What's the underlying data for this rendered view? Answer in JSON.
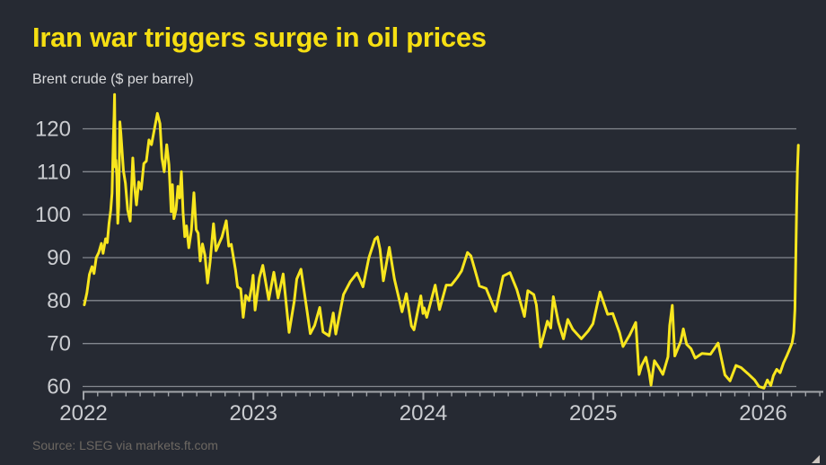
{
  "colors": {
    "background": "#262a33",
    "accent_yellow": "#f6df12",
    "line_yellow": "#f8e61e",
    "grid": "#84888f",
    "axis": "#a2a5aa",
    "tick_label": "#caccd0",
    "subtitle_text": "#d9dadc",
    "source_text": "#6d6862"
  },
  "chart_data": {
    "type": "line",
    "title": "Iran war triggers surge in oil prices",
    "subtitle": "Brent crude ($ per barrel)",
    "source": "Source: LSEG via markets.ft.com",
    "xlabel": "",
    "ylabel": "$ per barrel",
    "x_unit": "decimal year (daily price series)",
    "xlim": [
      2022.0,
      2026.36
    ],
    "ylim": [
      57,
      130
    ],
    "yticks": [
      120,
      110,
      100,
      90,
      80,
      70,
      60
    ],
    "xticks": [
      2022,
      2023,
      2024,
      2025,
      2026
    ],
    "grid": "horizontal gridlines on, monthly minor ticks on x axis",
    "legend": "none",
    "series": [
      {
        "name": "Brent crude",
        "color": "#f8e61e",
        "points": [
          [
            2022.005,
            79.0
          ],
          [
            2022.02,
            81.8
          ],
          [
            2022.035,
            86.1
          ],
          [
            2022.05,
            87.9
          ],
          [
            2022.062,
            86.3
          ],
          [
            2022.075,
            90.0
          ],
          [
            2022.09,
            91.2
          ],
          [
            2022.105,
            93.3
          ],
          [
            2022.115,
            91.0
          ],
          [
            2022.13,
            94.4
          ],
          [
            2022.14,
            93.5
          ],
          [
            2022.15,
            97.9
          ],
          [
            2022.16,
            101.0
          ],
          [
            2022.168,
            105.0
          ],
          [
            2022.176,
            118.1
          ],
          [
            2022.18,
            123.2
          ],
          [
            2022.183,
            127.98
          ],
          [
            2022.187,
            111.1
          ],
          [
            2022.191,
            112.7
          ],
          [
            2022.196,
            109.0
          ],
          [
            2022.202,
            98.0
          ],
          [
            2022.207,
            101.9
          ],
          [
            2022.214,
            121.6
          ],
          [
            2022.22,
            119.0
          ],
          [
            2022.235,
            110.2
          ],
          [
            2022.247,
            107.3
          ],
          [
            2022.26,
            101.1
          ],
          [
            2022.275,
            98.5
          ],
          [
            2022.29,
            113.2
          ],
          [
            2022.3,
            106.7
          ],
          [
            2022.312,
            102.3
          ],
          [
            2022.325,
            107.6
          ],
          [
            2022.34,
            105.9
          ],
          [
            2022.355,
            111.9
          ],
          [
            2022.37,
            112.5
          ],
          [
            2022.385,
            117.4
          ],
          [
            2022.4,
            116.3
          ],
          [
            2022.42,
            120.5
          ],
          [
            2022.435,
            123.6
          ],
          [
            2022.45,
            121.2
          ],
          [
            2022.462,
            113.1
          ],
          [
            2022.475,
            110.0
          ],
          [
            2022.49,
            116.3
          ],
          [
            2022.503,
            111.6
          ],
          [
            2022.51,
            106.0
          ],
          [
            2022.516,
            100.7
          ],
          [
            2022.523,
            107.0
          ],
          [
            2022.532,
            99.1
          ],
          [
            2022.545,
            101.2
          ],
          [
            2022.556,
            106.6
          ],
          [
            2022.566,
            103.9
          ],
          [
            2022.576,
            110.0
          ],
          [
            2022.586,
            100.5
          ],
          [
            2022.596,
            94.9
          ],
          [
            2022.606,
            97.4
          ],
          [
            2022.62,
            92.3
          ],
          [
            2022.635,
            96.4
          ],
          [
            2022.65,
            105.1
          ],
          [
            2022.663,
            96.5
          ],
          [
            2022.675,
            95.7
          ],
          [
            2022.687,
            89.2
          ],
          [
            2022.7,
            93.2
          ],
          [
            2022.715,
            90.5
          ],
          [
            2022.73,
            84.1
          ],
          [
            2022.745,
            89.0
          ],
          [
            2022.765,
            97.9
          ],
          [
            2022.78,
            91.6
          ],
          [
            2022.8,
            93.5
          ],
          [
            2022.815,
            94.8
          ],
          [
            2022.84,
            98.6
          ],
          [
            2022.855,
            92.7
          ],
          [
            2022.87,
            93.1
          ],
          [
            2022.895,
            87.0
          ],
          [
            2022.907,
            83.2
          ],
          [
            2022.925,
            82.7
          ],
          [
            2022.94,
            76.1
          ],
          [
            2022.955,
            81.2
          ],
          [
            2022.975,
            80.0
          ],
          [
            2022.99,
            83.3
          ],
          [
            2022.998,
            85.9
          ],
          [
            2023.01,
            77.8
          ],
          [
            2023.035,
            85.3
          ],
          [
            2023.055,
            88.2
          ],
          [
            2023.09,
            80.2
          ],
          [
            2023.12,
            86.6
          ],
          [
            2023.145,
            80.6
          ],
          [
            2023.175,
            86.2
          ],
          [
            2023.21,
            72.6
          ],
          [
            2023.24,
            79.8
          ],
          [
            2023.255,
            85.0
          ],
          [
            2023.28,
            87.3
          ],
          [
            2023.315,
            77.7
          ],
          [
            2023.335,
            72.3
          ],
          [
            2023.36,
            74.2
          ],
          [
            2023.39,
            78.4
          ],
          [
            2023.41,
            72.7
          ],
          [
            2023.445,
            71.8
          ],
          [
            2023.47,
            77.1
          ],
          [
            2023.485,
            72.2
          ],
          [
            2023.53,
            81.4
          ],
          [
            2023.57,
            84.4
          ],
          [
            2023.61,
            86.4
          ],
          [
            2023.645,
            83.2
          ],
          [
            2023.68,
            90.0
          ],
          [
            2023.715,
            94.3
          ],
          [
            2023.73,
            94.8
          ],
          [
            2023.745,
            92.0
          ],
          [
            2023.765,
            84.6
          ],
          [
            2023.8,
            92.4
          ],
          [
            2023.83,
            85.0
          ],
          [
            2023.875,
            77.4
          ],
          [
            2023.9,
            81.6
          ],
          [
            2023.93,
            74.1
          ],
          [
            2023.945,
            73.2
          ],
          [
            2023.985,
            81.1
          ],
          [
            2023.998,
            77.0
          ],
          [
            2024.005,
            78.3
          ],
          [
            2024.02,
            76.1
          ],
          [
            2024.07,
            83.6
          ],
          [
            2024.095,
            77.9
          ],
          [
            2024.135,
            83.6
          ],
          [
            2024.165,
            83.6
          ],
          [
            2024.2,
            85.4
          ],
          [
            2024.225,
            86.9
          ],
          [
            2024.26,
            91.2
          ],
          [
            2024.28,
            90.4
          ],
          [
            2024.305,
            87.0
          ],
          [
            2024.33,
            83.4
          ],
          [
            2024.37,
            82.8
          ],
          [
            2024.425,
            77.5
          ],
          [
            2024.47,
            85.7
          ],
          [
            2024.51,
            86.5
          ],
          [
            2024.55,
            82.6
          ],
          [
            2024.595,
            76.3
          ],
          [
            2024.615,
            82.3
          ],
          [
            2024.65,
            81.4
          ],
          [
            2024.665,
            79.0
          ],
          [
            2024.69,
            69.2
          ],
          [
            2024.73,
            75.2
          ],
          [
            2024.75,
            73.6
          ],
          [
            2024.765,
            80.9
          ],
          [
            2024.795,
            74.9
          ],
          [
            2024.825,
            71.1
          ],
          [
            2024.85,
            75.6
          ],
          [
            2024.88,
            73.3
          ],
          [
            2024.93,
            71.1
          ],
          [
            2024.97,
            72.9
          ],
          [
            2024.998,
            74.6
          ],
          [
            2025.04,
            82.0
          ],
          [
            2025.085,
            76.8
          ],
          [
            2025.115,
            77.0
          ],
          [
            2025.155,
            72.5
          ],
          [
            2025.175,
            69.3
          ],
          [
            2025.215,
            72.0
          ],
          [
            2025.25,
            74.9
          ],
          [
            2025.27,
            62.8
          ],
          [
            2025.285,
            64.9
          ],
          [
            2025.31,
            66.8
          ],
          [
            2025.33,
            63.1
          ],
          [
            2025.34,
            60.3
          ],
          [
            2025.36,
            66.0
          ],
          [
            2025.385,
            64.5
          ],
          [
            2025.41,
            62.8
          ],
          [
            2025.44,
            66.9
          ],
          [
            2025.45,
            74.2
          ],
          [
            2025.465,
            78.9
          ],
          [
            2025.48,
            67.1
          ],
          [
            2025.515,
            70.5
          ],
          [
            2025.53,
            73.4
          ],
          [
            2025.55,
            69.8
          ],
          [
            2025.575,
            68.8
          ],
          [
            2025.6,
            66.6
          ],
          [
            2025.64,
            67.7
          ],
          [
            2025.69,
            67.5
          ],
          [
            2025.735,
            70.1
          ],
          [
            2025.775,
            62.7
          ],
          [
            2025.805,
            61.3
          ],
          [
            2025.84,
            64.9
          ],
          [
            2025.87,
            64.4
          ],
          [
            2025.91,
            63.0
          ],
          [
            2025.95,
            61.5
          ],
          [
            2025.975,
            60.0
          ],
          [
            2026.005,
            59.6
          ],
          [
            2026.025,
            61.5
          ],
          [
            2026.045,
            60.2
          ],
          [
            2026.06,
            62.5
          ],
          [
            2026.08,
            64.0
          ],
          [
            2026.1,
            63.2
          ],
          [
            2026.12,
            65.5
          ],
          [
            2026.14,
            67.2
          ],
          [
            2026.155,
            68.6
          ],
          [
            2026.17,
            70.1
          ],
          [
            2026.18,
            72.5
          ],
          [
            2026.187,
            78.0
          ],
          [
            2026.193,
            92.0
          ],
          [
            2026.198,
            104.0
          ],
          [
            2026.202,
            110.5
          ],
          [
            2026.207,
            116.2
          ]
        ]
      }
    ]
  }
}
